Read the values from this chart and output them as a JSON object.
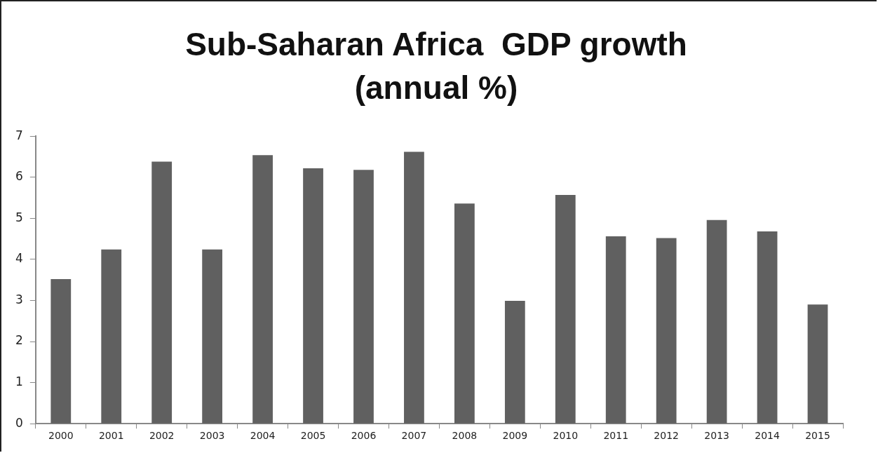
{
  "chart_data": {
    "type": "bar",
    "title": "Sub-Saharan Africa  GDP growth (annual %)",
    "categories": [
      "2000",
      "2001",
      "2002",
      "2003",
      "2004",
      "2005",
      "2006",
      "2007",
      "2008",
      "2009",
      "2010",
      "2011",
      "2012",
      "2013",
      "2014",
      "2015"
    ],
    "values": [
      3.52,
      4.24,
      6.38,
      4.24,
      6.54,
      6.22,
      6.18,
      6.62,
      5.36,
      2.99,
      5.57,
      4.56,
      4.52,
      4.96,
      4.68,
      2.9
    ],
    "color": "#606060",
    "ylim": [
      0,
      7
    ],
    "yticks": [
      0,
      1,
      2,
      3,
      4,
      5,
      6,
      7
    ],
    "grid": false,
    "legend": false
  }
}
